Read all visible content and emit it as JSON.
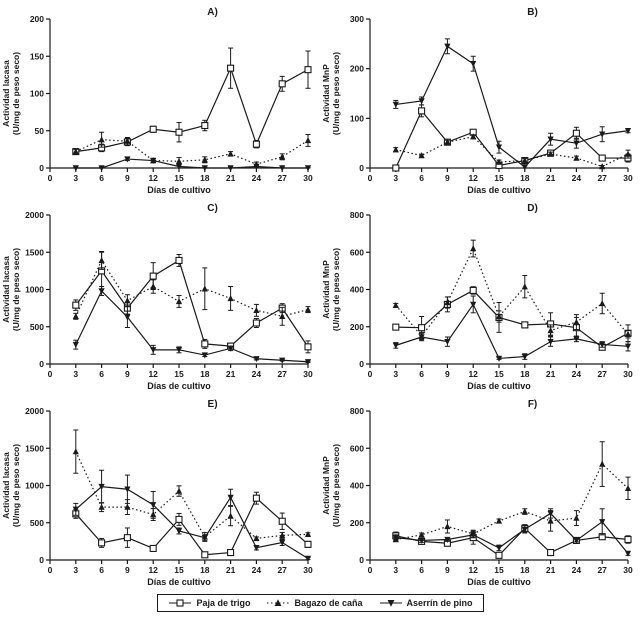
{
  "figure": {
    "xlabel": "Días de cultivo",
    "ylabel_units": "(U/mg de peso seco)",
    "line_color": "#1a1a1a"
  },
  "legend": {
    "items": [
      {
        "label": "Paja de trigo",
        "marker": "open-square",
        "linestyle": "solid"
      },
      {
        "label": "Bagazo de caña",
        "marker": "filled-triangle-up",
        "linestyle": "dotted"
      },
      {
        "label": "Aserrín de pino",
        "marker": "filled-triangle-down",
        "linestyle": "solid"
      }
    ]
  },
  "chart_data": [
    {
      "type": "line",
      "title": "A)",
      "ylabel_line1": "Actividad lacasa",
      "ylabel_line2": "(U/mg de peso seco)",
      "xlabel": "Días de cultivo",
      "x": [
        3,
        6,
        9,
        12,
        15,
        18,
        21,
        24,
        27,
        30
      ],
      "xlim": [
        0,
        30
      ],
      "xtick_step": 3,
      "ylim": [
        0,
        200
      ],
      "ytick_step": 50,
      "grid": false,
      "series": [
        {
          "name": "Paja de trigo",
          "marker": "open-square",
          "linestyle": "solid",
          "values": [
            22,
            27,
            35,
            52,
            48,
            57,
            134,
            32,
            113,
            132
          ],
          "errors": [
            3,
            5,
            5,
            4,
            13,
            7,
            27,
            5,
            10,
            25
          ]
        },
        {
          "name": "Bagazo de caña",
          "marker": "filled-triangle-up",
          "linestyle": "dotted",
          "values": [
            22,
            38,
            36,
            10,
            9,
            11,
            19,
            5,
            15,
            37
          ],
          "errors": [
            3,
            10,
            5,
            3,
            5,
            4,
            3,
            3,
            4,
            8
          ]
        },
        {
          "name": "Aserrín de pino",
          "marker": "filled-triangle-down",
          "linestyle": "solid",
          "values": [
            0,
            0,
            12,
            10,
            2,
            0,
            0,
            2,
            0,
            0
          ],
          "errors": [
            1,
            1,
            2,
            2,
            2,
            1,
            1,
            1,
            1,
            1
          ]
        }
      ]
    },
    {
      "type": "line",
      "title": "B)",
      "ylabel_line1": "Actividad MnP",
      "ylabel_line2": "(U/mg de peso seco)",
      "xlabel": "Días de cultivo",
      "x": [
        3,
        6,
        9,
        12,
        15,
        18,
        21,
        24,
        27,
        30
      ],
      "xlim": [
        0,
        30
      ],
      "xtick_step": 3,
      "ylim": [
        0,
        300
      ],
      "ytick_step": 100,
      "grid": false,
      "series": [
        {
          "name": "Paja de trigo",
          "marker": "open-square",
          "linestyle": "solid",
          "values": [
            0,
            115,
            52,
            72,
            5,
            15,
            30,
            70,
            20,
            20
          ],
          "errors": [
            1,
            12,
            5,
            5,
            6,
            4,
            5,
            12,
            5,
            8
          ]
        },
        {
          "name": "Bagazo de caña",
          "marker": "filled-triangle-up",
          "linestyle": "dotted",
          "values": [
            37,
            25,
            52,
            63,
            12,
            15,
            28,
            20,
            3,
            28
          ],
          "errors": [
            4,
            3,
            4,
            4,
            4,
            4,
            4,
            4,
            2,
            8
          ]
        },
        {
          "name": "Aserrín de pino",
          "marker": "filled-triangle-down",
          "linestyle": "solid",
          "values": [
            128,
            135,
            245,
            210,
            42,
            2,
            58,
            50,
            68,
            75
          ],
          "errors": [
            8,
            8,
            15,
            15,
            12,
            2,
            12,
            10,
            15,
            4
          ]
        }
      ]
    },
    {
      "type": "line",
      "title": "C)",
      "ylabel_line1": "Actividad lacasa",
      "ylabel_line2": "(U/mg de peso seco)",
      "xlabel": "Días de cultivo",
      "x": [
        3,
        6,
        9,
        12,
        15,
        18,
        21,
        24,
        27,
        30
      ],
      "xlim": [
        0,
        30
      ],
      "xtick_step": 3,
      "ylim": [
        0,
        2000
      ],
      "ytick_step": 500,
      "grid": false,
      "series": [
        {
          "name": "Paja de trigo",
          "marker": "open-square",
          "linestyle": "solid",
          "values": [
            790,
            1250,
            750,
            1180,
            1390,
            270,
            240,
            550,
            750,
            230
          ],
          "errors": [
            70,
            250,
            80,
            180,
            80,
            60,
            40,
            60,
            60,
            80
          ]
        },
        {
          "name": "Bagazo de caña",
          "marker": "filled-triangle-up",
          "linestyle": "dotted",
          "values": [
            640,
            1390,
            850,
            1040,
            840,
            1010,
            880,
            720,
            640,
            730
          ],
          "errors": [
            40,
            120,
            80,
            90,
            80,
            280,
            160,
            80,
            120,
            40
          ]
        },
        {
          "name": "Aserrín de pino",
          "marker": "filled-triangle-down",
          "linestyle": "solid",
          "values": [
            260,
            980,
            630,
            190,
            190,
            120,
            210,
            70,
            50,
            30
          ],
          "errors": [
            60,
            60,
            140,
            60,
            40,
            20,
            30,
            15,
            10,
            10
          ]
        }
      ]
    },
    {
      "type": "line",
      "title": "D)",
      "ylabel_line1": "Actividad MnP",
      "ylabel_line2": "(U/mg de peso seco)",
      "xlabel": "Días de cultivo",
      "x": [
        3,
        6,
        9,
        12,
        15,
        18,
        21,
        24,
        27,
        30
      ],
      "xlim": [
        0,
        30
      ],
      "xtick_step": 3,
      "ylim": [
        0,
        800
      ],
      "ytick_step": 200,
      "grid": false,
      "series": [
        {
          "name": "Paja de trigo",
          "marker": "open-square",
          "linestyle": "solid",
          "values": [
            198,
            195,
            320,
            395,
            250,
            210,
            215,
            195,
            90,
            165
          ],
          "errors": [
            10,
            60,
            40,
            20,
            80,
            15,
            60,
            55,
            15,
            45
          ]
        },
        {
          "name": "Bagazo de caña",
          "marker": "filled-triangle-up",
          "linestyle": "dotted",
          "values": [
            315,
            150,
            330,
            620,
            255,
            415,
            180,
            225,
            325,
            160
          ],
          "errors": [
            10,
            20,
            30,
            45,
            30,
            60,
            30,
            40,
            55,
            20
          ]
        },
        {
          "name": "Aserrín de pino",
          "marker": "filled-triangle-down",
          "linestyle": "solid",
          "values": [
            100,
            145,
            120,
            320,
            30,
            40,
            120,
            135,
            105,
            95
          ],
          "errors": [
            15,
            20,
            25,
            45,
            5,
            15,
            25,
            15,
            15,
            25
          ]
        }
      ]
    },
    {
      "type": "line",
      "title": "E)",
      "ylabel_line1": "Actividad lacasa",
      "ylabel_line2": "(U/mg de peso seco)",
      "xlabel": "Días de cultivo",
      "x": [
        3,
        6,
        9,
        12,
        15,
        18,
        21,
        24,
        27,
        30
      ],
      "xlim": [
        0,
        30
      ],
      "xtick_step": 3,
      "ylim": [
        0,
        2000
      ],
      "ytick_step": 500,
      "grid": false,
      "series": [
        {
          "name": "Paja de trigo",
          "marker": "open-square",
          "linestyle": "solid",
          "values": [
            620,
            230,
            300,
            155,
            545,
            70,
            100,
            830,
            520,
            210
          ],
          "errors": [
            60,
            60,
            130,
            30,
            80,
            20,
            20,
            80,
            110,
            40
          ]
        },
        {
          "name": "Bagazo de caña",
          "marker": "filled-triangle-up",
          "linestyle": "dotted",
          "values": [
            1455,
            710,
            710,
            610,
            925,
            310,
            590,
            290,
            330,
            345
          ],
          "errors": [
            290,
            60,
            100,
            80,
            70,
            60,
            130,
            20,
            40,
            20
          ]
        },
        {
          "name": "Aserrín de pino",
          "marker": "filled-triangle-down",
          "linestyle": "solid",
          "values": [
            680,
            985,
            950,
            740,
            390,
            300,
            840,
            165,
            235,
            20
          ],
          "errors": [
            80,
            220,
            190,
            180,
            40,
            40,
            110,
            30,
            40,
            15
          ]
        }
      ]
    },
    {
      "type": "line",
      "title": "F)",
      "ylabel_line1": "Actividad MnP",
      "ylabel_line2": "(U/mg de peso seco)",
      "xlabel": "Días de cultivo",
      "x": [
        3,
        6,
        9,
        12,
        15,
        18,
        21,
        24,
        27,
        30
      ],
      "xlim": [
        0,
        30
      ],
      "xtick_step": 3,
      "ylim": [
        0,
        800
      ],
      "ytick_step": 200,
      "grid": false,
      "series": [
        {
          "name": "Paja de trigo",
          "marker": "open-square",
          "linestyle": "solid",
          "values": [
            130,
            100,
            90,
            120,
            25,
            170,
            40,
            105,
            125,
            110
          ],
          "errors": [
            20,
            15,
            15,
            35,
            15,
            20,
            10,
            8,
            15,
            20
          ]
        },
        {
          "name": "Bagazo de caña",
          "marker": "filled-triangle-up",
          "linestyle": "dotted",
          "values": [
            110,
            135,
            180,
            140,
            210,
            260,
            210,
            225,
            515,
            385
          ],
          "errors": [
            10,
            10,
            35,
            20,
            10,
            15,
            55,
            40,
            120,
            60
          ]
        },
        {
          "name": "Aserrín de pino",
          "marker": "filled-triangle-down",
          "linestyle": "solid",
          "values": [
            120,
            105,
            110,
            135,
            65,
            165,
            250,
            105,
            205,
            35
          ],
          "errors": [
            15,
            10,
            10,
            15,
            15,
            20,
            25,
            8,
            70,
            10
          ]
        }
      ]
    }
  ]
}
